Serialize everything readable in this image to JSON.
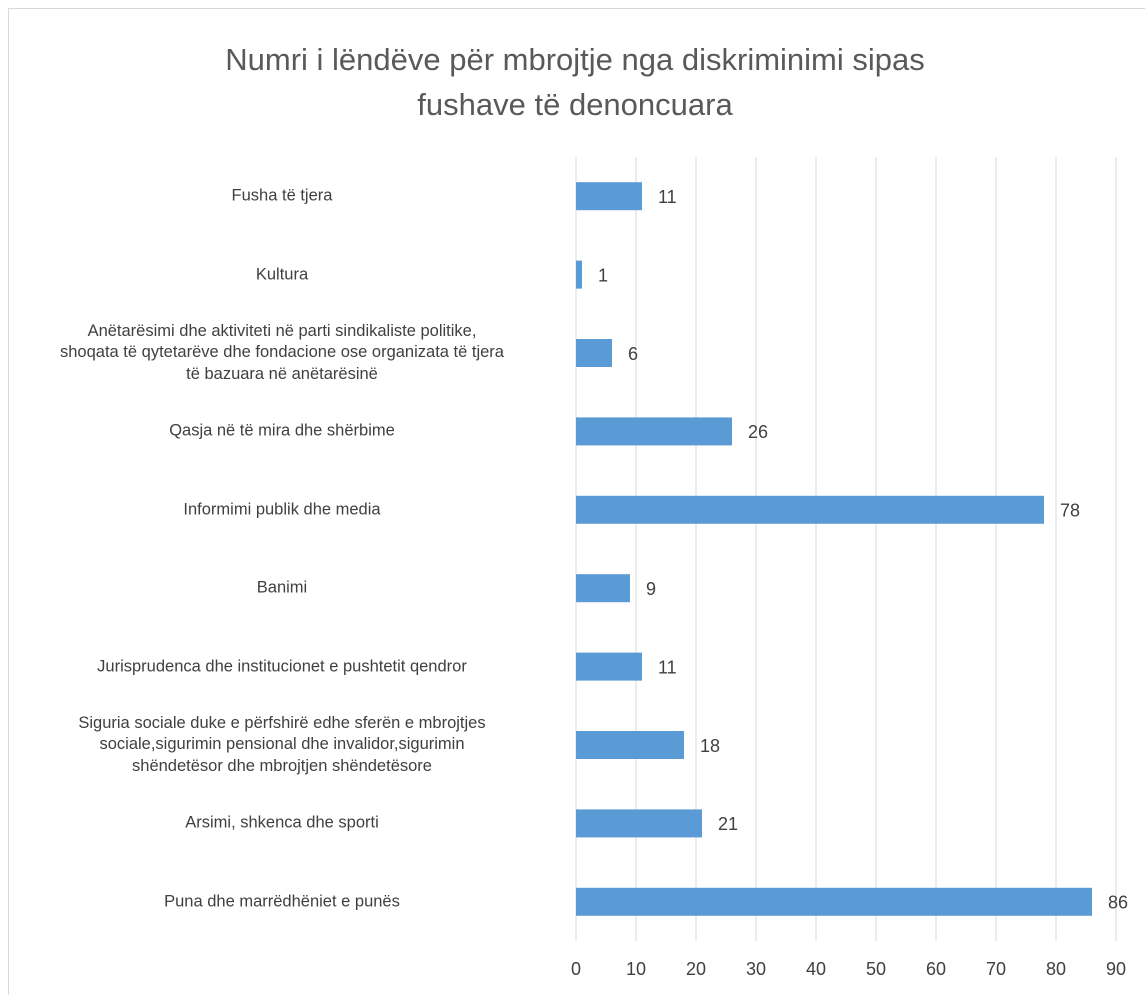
{
  "chart_data": {
    "type": "bar",
    "orientation": "horizontal",
    "title": "Numri i lëndëve për mbrojtje nga diskriminimi sipas\nfushave të denoncuara",
    "categories": [
      "Fusha të tjera",
      "Kultura",
      "Anëtarësimi dhe aktiviteti në parti sindikaliste politike,\nshoqata të qytetarëve dhe fondacione ose organizata të tjera\ntë bazuara në anëtarësinë",
      "Qasja në të mira dhe shërbime",
      "Informimi publik dhe media",
      "Banimi",
      "Jurisprudenca dhe institucionet e pushtetit qendror",
      "Siguria sociale duke e përfshirë edhe sferën e mbrojtjes\nsociale,sigurimin pensional dhe invalidor,sigurimin\nshëndetësor dhe mbrojtjen shëndetësore",
      "Arsimi, shkenca dhe sporti",
      "Puna dhe marrëdhëniet e punës"
    ],
    "values": [
      11,
      1,
      6,
      26,
      78,
      9,
      11,
      18,
      21,
      86
    ],
    "color": "#5b9bd5",
    "xlim": [
      0,
      90
    ],
    "xticks": [
      0,
      10,
      20,
      30,
      40,
      50,
      60,
      70,
      80,
      90
    ],
    "grid": true
  }
}
